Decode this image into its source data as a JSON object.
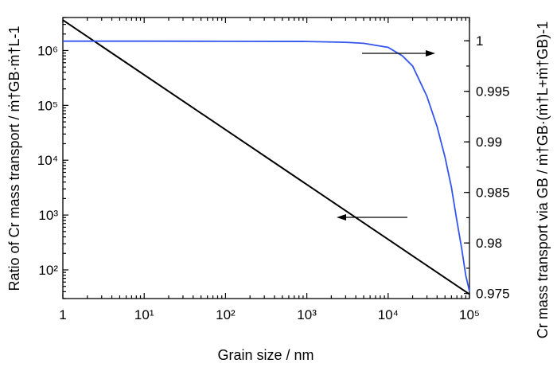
{
  "chart_data": {
    "type": "line",
    "title": "",
    "xlabel": "Grain size / nm",
    "ylabel_left": "Ratio of Cr mass transport / ṁ†GB·ṁ†L-1",
    "ylabel_right": "Cr mass transport via GB / ṁ†GB·(ṁ†L+ṁ†GB)-1",
    "x_scale": "log",
    "y_left_scale": "log",
    "y_right_scale": "linear",
    "xlim": [
      1,
      100000
    ],
    "ylim_left": [
      30,
      4000000
    ],
    "ylim_right": [
      0.9745,
      1.0023
    ],
    "x_ticks": [
      "1",
      "10¹",
      "10²",
      "10³",
      "10⁴",
      "10⁵"
    ],
    "y_left_ticks": [
      "10²",
      "10³",
      "10⁴",
      "10⁵",
      "10⁶"
    ],
    "y_right_ticks": [
      "0.975",
      "0.98",
      "0.985",
      "0.99",
      "0.995",
      "1"
    ],
    "grid": false,
    "series": [
      {
        "axis": "left",
        "color": "#000000",
        "x": [
          1,
          100000
        ],
        "y": [
          3600000,
          36
        ]
      },
      {
        "axis": "right",
        "color": "#3355ee",
        "x": [
          1,
          10,
          100,
          1000,
          3000,
          5000,
          7000,
          10000,
          15000,
          20000,
          30000,
          40000,
          50000,
          60000,
          70000,
          80000,
          90000,
          100000
        ],
        "y": [
          0.99996,
          0.99996,
          0.99995,
          0.99993,
          0.99985,
          0.99975,
          0.99955,
          0.99935,
          0.9985,
          0.9975,
          0.9945,
          0.9915,
          0.9885,
          0.9855,
          0.9822,
          0.9795,
          0.9768,
          0.9752
        ]
      }
    ],
    "annotations": [
      {
        "type": "arrow",
        "direction": "right",
        "points_to": "right axis"
      },
      {
        "type": "arrow",
        "direction": "left",
        "points_to": "left axis"
      }
    ]
  }
}
